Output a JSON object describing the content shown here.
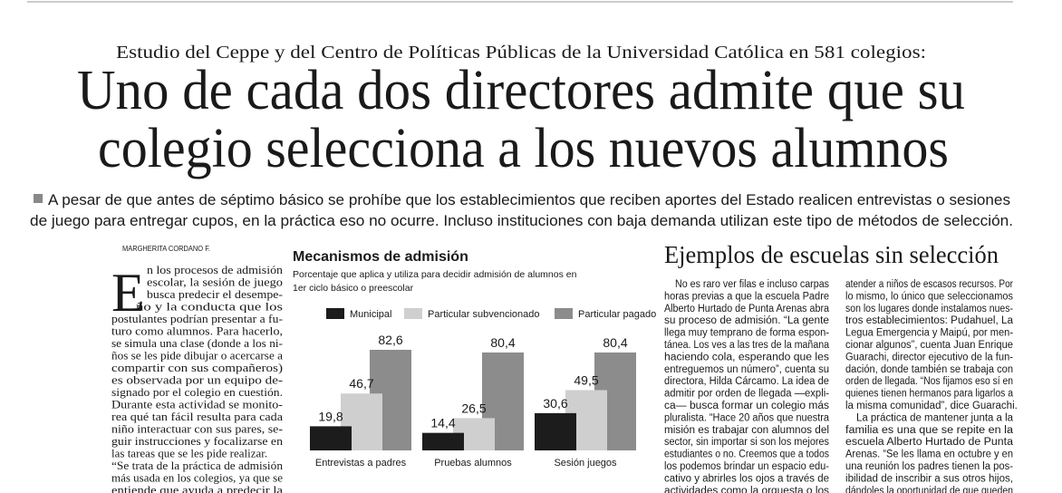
{
  "header": {
    "kicker": "Estudio del Ceppe y del Centro de Políticas Públicas de la Universidad Católica en 581 colegios:",
    "title_lines": [
      "Uno de cada dos directores admite que su",
      "colegio selecciona a los nuevos alumnos"
    ],
    "lead_lines": [
      "A pesar de que antes de séptimo básico se prohíbe que los establecimientos que reciben aportes del Estado realicen entrevistas o sesiones",
      "de juego para entregar cupos, en la práctica eso no ocurre. Incluso instituciones con baja demanda utilizan este tipo de métodos de selección."
    ]
  },
  "article": {
    "byline": "MARGHERITA CORDANO F.",
    "drop_cap": "E",
    "paragraphs": [
      [
        "n los procesos de admisión",
        "escolar, la sesión de juego",
        "busca predecir el desempe-",
        "ño y la conducta que los",
        "postulantes podrían presentar a fu-",
        "turo como alumnos. Para hacerlo,",
        "se simula una clase (donde a los ni-",
        "ños se les pide dibujar o acercarse a",
        "compartir con sus compañeros)",
        "es observada por un equipo de-",
        "signado por el colegio en cuestión.",
        "Durante esta actividad se monito-",
        "rea qué tan fácil resulta para cada",
        "niño interactuar con sus pares, se-",
        "guir instrucciones y focalizarse en",
        "las tareas que se les pide realizar."
      ],
      [
        "“Se trata de la práctica de admisión",
        "más usada en los colegios, ya que se",
        "entiende que ayuda a predecir la"
      ]
    ]
  },
  "chart_data": {
    "type": "bar",
    "title": "Mecanismos de admisión",
    "subtitle_lines": [
      "Porcentaje que aplica y utiliza para decidir admisión de alumnos en",
      "1er ciclo básico o preescolar"
    ],
    "categories": [
      "Entrevistas a padres",
      "Pruebas alumnos",
      "Sesión juegos"
    ],
    "series": [
      {
        "name": "Municipal",
        "color": "#1c1c1c",
        "values": [
          19.8,
          14.4,
          30.6
        ],
        "value_labels": [
          "19,8",
          "14,4",
          "30,6"
        ]
      },
      {
        "name": "Particular subvencionado",
        "color": "#cfcfcf",
        "values": [
          46.7,
          26.5,
          49.5
        ],
        "value_labels": [
          "46,7",
          "26,5",
          "49,5"
        ]
      },
      {
        "name": "Particular pagado",
        "color": "#8c8c8c",
        "values": [
          82.6,
          80.4,
          80.4
        ],
        "value_labels": [
          "82,6",
          "80,4",
          "80,4"
        ]
      }
    ]
  },
  "sidebar": {
    "title": "Ejemplos de escuelas sin selección",
    "columns": [
      [
        [
          "No es raro ver filas e incluso carpas",
          "horas previas a que la escuela Padre",
          "Alberto Hurtado de Punta Arenas abra",
          "su proceso de admisión. “La gente",
          "llega muy temprano de forma espon-",
          "tánea. Los ves a las tres de la mañana",
          "haciendo cola, esperando que les",
          "entreguemos un número”, cuenta su",
          "directora, Hilda Cárcamo. La idea de",
          "admitir por orden de llegada —expli-",
          "ca— busca formar un colegio más",
          "pluralista. “Hace 20 años que nuestra",
          "misión es trabajar con alumnos del",
          "sector, sin importar si son los mejores",
          "estudiantes o no. Creemos que a todos",
          "los podemos brindar un espacio edu-",
          "cativo y abrirles los ojos a través de",
          "actividades como la orquesta o los"
        ]
      ],
      [
        [
          "atender a niños de escasos recursos. Por",
          "lo mismo, lo único que seleccionamos",
          "son los lugares donde instalamos nues-",
          "tros establecimientos: Pudahuel, La",
          "Legua Emergencia y Maipú, por men-",
          "cionar algunos”, cuenta Juan Enrique",
          "Guarachi, director ejecutivo de la fun-",
          "dación, donde también se trabaja con",
          "orden de llegada. “Nos fijamos eso sí en",
          "quienes tienen hermanos para ligarlos a",
          "la misma comunidad”, dice Guarachi."
        ],
        [
          "La práctica de mantener junta a la",
          "familia es una que se repite en la",
          "escuela Alberto Hurtado de Punta",
          "Arenas. “Se les llama en octubre y en",
          "una reunión los padres tienen la pos-",
          "ibilidad de inscribir a sus otros hijos,",
          "dándoles la oportunidad de que queden"
        ]
      ]
    ]
  }
}
